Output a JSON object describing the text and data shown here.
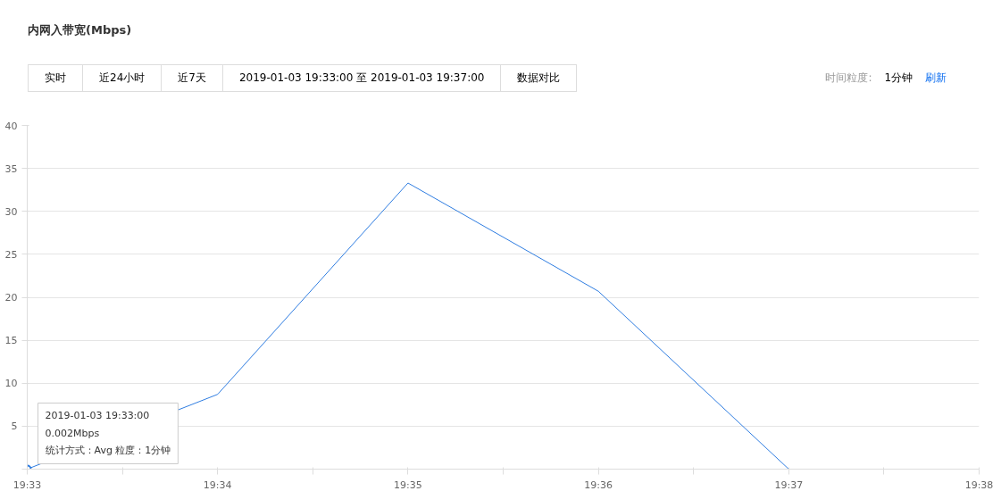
{
  "chart_data": {
    "type": "line",
    "title": "内网入带宽(Mbps)",
    "x": [
      19.55,
      19.566667,
      19.583333,
      19.6,
      19.616667
    ],
    "series": [
      {
        "color": "#2f7de1",
        "values": [
          0.002,
          8.7,
          33.3,
          20.7,
          0
        ]
      }
    ],
    "xlim": [
      19.55,
      19.633333
    ],
    "xticks": [
      {
        "value": 19.55,
        "label": "19:33"
      },
      {
        "value": 19.558333,
        "label": null
      },
      {
        "value": 19.566667,
        "label": "19:34"
      },
      {
        "value": 19.575,
        "label": null
      },
      {
        "value": 19.583333,
        "label": "19:35"
      },
      {
        "value": 19.591667,
        "label": null
      },
      {
        "value": 19.6,
        "label": "19:36"
      },
      {
        "value": 19.608333,
        "label": null
      },
      {
        "value": 19.616667,
        "label": "19:37"
      },
      {
        "value": 19.625,
        "label": null
      },
      {
        "value": 19.633333,
        "label": "19:38"
      }
    ],
    "ylim": [
      0,
      40
    ],
    "yticks": [
      {
        "value": 0,
        "label": null
      },
      5,
      10,
      15,
      20,
      25,
      30,
      35,
      40
    ],
    "grid": "y",
    "marker": "none",
    "line_style": "solid",
    "annotations": [
      "实时",
      "近24小时",
      "近7天",
      "2019-01-03 19:33:00 至 2019-01-03 19:37:00",
      "数据对比",
      "时间粒度:",
      "1分钟",
      "刷新",
      {
        "text": "2019-01-03 19:33:00\n0.002Mbps\n统计方式：Avg 粒度：1分钟",
        "x": 19.55,
        "y": 0.002
      }
    ]
  }
}
